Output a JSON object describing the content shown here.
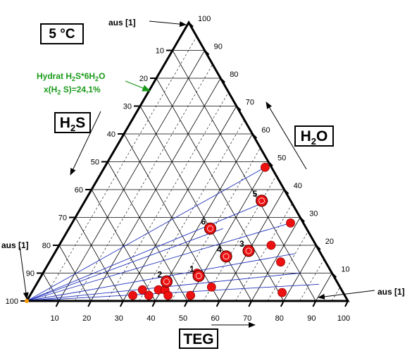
{
  "chart_data": {
    "type": "ternary",
    "temperature_label": "5 °C",
    "axes": {
      "h2s": {
        "label": "H",
        "label_sub": "2",
        "label_tail": "S"
      },
      "h2o": {
        "label": "H",
        "label_sub": "2",
        "label_tail": "O"
      },
      "teg": {
        "label": "TEG"
      }
    },
    "ticks": {
      "teg": [
        "10",
        "20",
        "30",
        "40",
        "50",
        "60",
        "70",
        "80",
        "90",
        "100"
      ],
      "h2s": [
        "10",
        "20",
        "30",
        "40",
        "50",
        "60",
        "70",
        "80",
        "90",
        "100"
      ],
      "h2o": [
        "10",
        "20",
        "30",
        "40",
        "50",
        "60",
        "70",
        "80",
        "90",
        "100"
      ]
    },
    "annotations": {
      "aus_top": "aus [1]",
      "aus_left": "aus [1]",
      "aus_right": "aus [1]",
      "hydrate_line1": "Hydrat H",
      "hydrate_line1_sub1": "2",
      "hydrate_line1_mid": "S*6H",
      "hydrate_line1_sub2": "2",
      "hydrate_line1_tail": "O",
      "hydrate_line2": "x(H",
      "hydrate_line2_sub": "2",
      "hydrate_line2_tail": " S)=24,1%",
      "hydrate_color": "#1a9a1a"
    },
    "colors": {
      "point": "#ee1111",
      "tie_line": "#2233bb",
      "grid": "#000000"
    },
    "points": [
      {
        "teg": 32,
        "h2o": 2
      },
      {
        "teg": 34,
        "h2o": 4
      },
      {
        "teg": 37,
        "h2o": 2
      },
      {
        "teg": 39,
        "h2o": 4
      },
      {
        "teg": 41,
        "h2o": 4
      },
      {
        "teg": 43,
        "h2o": 2
      },
      {
        "teg": 50,
        "h2o": 2
      },
      {
        "teg": 55,
        "h2o": 5
      },
      {
        "teg": 78,
        "h2o": 3
      },
      {
        "teg": 72,
        "h2o": 14
      },
      {
        "teg": 66,
        "h2o": 20
      },
      {
        "teg": 68,
        "h2o": 28
      },
      {
        "teg": 50,
        "h2o": 48
      },
      {
        "teg": 48,
        "h2o": 10
      }
    ],
    "labeled_points": [
      {
        "label": "1",
        "teg": 49,
        "h2o": 9
      },
      {
        "label": "2",
        "teg": 40,
        "h2o": 7
      },
      {
        "label": "3",
        "teg": 60,
        "h2o": 18
      },
      {
        "label": "4",
        "teg": 54,
        "h2o": 16
      },
      {
        "label": "5",
        "teg": 55,
        "h2o": 36
      },
      {
        "label": "6",
        "teg": 44,
        "h2o": 26
      }
    ],
    "tie_lines": [
      {
        "to_teg": 50,
        "to_h2o": 48
      },
      {
        "to_teg": 57,
        "to_h2o": 36
      },
      {
        "to_teg": 48,
        "to_h2o": 26
      },
      {
        "to_teg": 68,
        "to_h2o": 28
      },
      {
        "to_teg": 75,
        "to_h2o": 17
      },
      {
        "to_teg": 80,
        "to_h2o": 10
      },
      {
        "to_teg": 88,
        "to_h2o": 6
      }
    ]
  }
}
